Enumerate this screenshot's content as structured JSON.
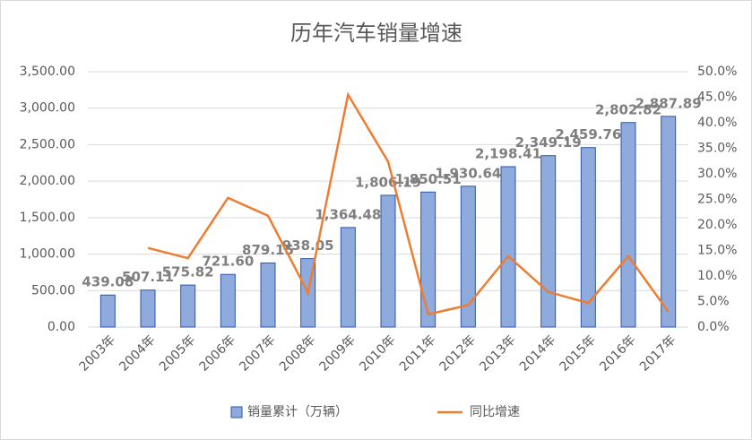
{
  "chart_data": {
    "type": "bar-line",
    "title": "历年汽车销量增速",
    "categories": [
      "2003年",
      "2004年",
      "2005年",
      "2006年",
      "2007年",
      "2008年",
      "2009年",
      "2010年",
      "2011年",
      "2012年",
      "2013年",
      "2014年",
      "2015年",
      "2016年",
      "2017年"
    ],
    "series": [
      {
        "name": "销量累计（万辆）",
        "type": "bar",
        "color": "#8faadc",
        "values": [
          439.08,
          507.11,
          575.82,
          721.6,
          879.15,
          938.05,
          1364.48,
          1806.19,
          1850.51,
          1930.64,
          2198.41,
          2349.19,
          2459.76,
          2802.82,
          2887.89
        ],
        "value_labels": [
          "439.08",
          "507.11",
          "575.82",
          "721.60",
          "879.15",
          "938.05",
          "1,364.48",
          "1,806.19",
          "1,850.51",
          "1,930.64",
          "2,198.41",
          "2,349.19",
          "2,459.76",
          "2,802.82",
          "2,887.89"
        ]
      },
      {
        "name": "同比增速",
        "type": "line",
        "axis": "y2",
        "color": "#ed7d31",
        "values": [
          null,
          15.5,
          13.5,
          25.3,
          21.8,
          6.7,
          45.5,
          32.4,
          2.5,
          4.3,
          13.9,
          6.9,
          4.7,
          13.9,
          3.0
        ]
      }
    ],
    "ylim": [
      0,
      3500
    ],
    "yticks": [
      {
        "value": 0,
        "label": "0.00"
      },
      {
        "value": 500,
        "label": "500.00"
      },
      {
        "value": 1000,
        "label": "1,000.00"
      },
      {
        "value": 1500,
        "label": "1,500.00"
      },
      {
        "value": 2000,
        "label": "2,000.00"
      },
      {
        "value": 2500,
        "label": "2,500.00"
      },
      {
        "value": 3000,
        "label": "3,000.00"
      },
      {
        "value": 3500,
        "label": "3,500.00"
      }
    ],
    "y2lim": [
      0,
      50
    ],
    "y2ticks": [
      {
        "value": 0,
        "label": "0.0%"
      },
      {
        "value": 5,
        "label": "5.0%"
      },
      {
        "value": 10,
        "label": "10.0%"
      },
      {
        "value": 15,
        "label": "15.0%"
      },
      {
        "value": 20,
        "label": "20.0%"
      },
      {
        "value": 25,
        "label": "25.0%"
      },
      {
        "value": 30,
        "label": "30.0%"
      },
      {
        "value": 35,
        "label": "35.0%"
      },
      {
        "value": 40,
        "label": "40.0%"
      },
      {
        "value": 45,
        "label": "45.0%"
      },
      {
        "value": 50,
        "label": "50.0%"
      }
    ],
    "grid": true,
    "legend": "bottom"
  }
}
